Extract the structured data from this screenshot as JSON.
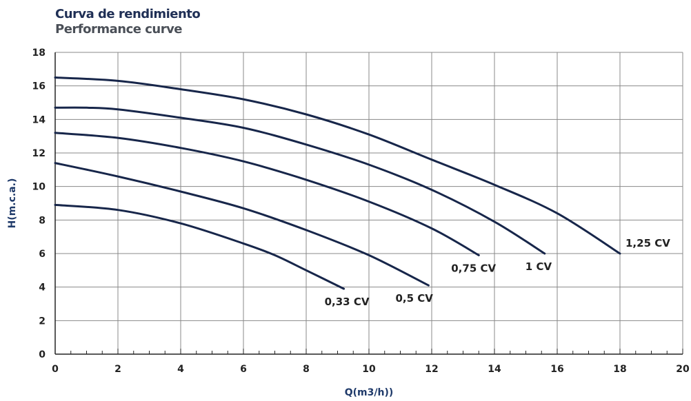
{
  "chart_data": {
    "type": "line",
    "title": "Curva de rendimiento",
    "subtitle": "Performance curve",
    "xlabel": "Q(m3/h))",
    "ylabel": "H(m.c.a.)",
    "xlim": [
      0,
      20
    ],
    "ylim": [
      0,
      18
    ],
    "xticks": [
      0,
      2,
      4,
      6,
      8,
      10,
      12,
      14,
      16,
      18,
      20
    ],
    "yticks": [
      0,
      2,
      4,
      6,
      8,
      10,
      12,
      14,
      16,
      18
    ],
    "grid": true,
    "colors": {
      "line": "#17264a",
      "grid": "#888888",
      "title": "#1f2f55",
      "subtitle": "#4a4f57",
      "ylabel": "#1f3a6a"
    },
    "series": [
      {
        "name": "0,33 CV",
        "x": [
          0,
          2,
          4,
          6,
          7,
          8,
          9.2
        ],
        "y": [
          8.9,
          8.6,
          7.8,
          6.6,
          5.9,
          5.0,
          3.9
        ]
      },
      {
        "name": "0,5 CV",
        "x": [
          0,
          2,
          4,
          6,
          8,
          10,
          11.9
        ],
        "y": [
          11.4,
          10.6,
          9.7,
          8.7,
          7.4,
          5.9,
          4.1
        ]
      },
      {
        "name": "0,75 CV",
        "x": [
          0,
          2,
          4,
          6,
          8,
          10,
          12,
          13.5
        ],
        "y": [
          13.2,
          12.9,
          12.3,
          11.5,
          10.4,
          9.1,
          7.5,
          5.9
        ]
      },
      {
        "name": "1 CV",
        "x": [
          0,
          1,
          2,
          4,
          6,
          8,
          10,
          12,
          14,
          15.6
        ],
        "y": [
          14.7,
          14.7,
          14.6,
          14.1,
          13.5,
          12.5,
          11.3,
          9.8,
          7.9,
          6.0
        ]
      },
      {
        "name": "1,25 CV",
        "x": [
          0,
          2,
          4,
          6,
          8,
          10,
          12,
          14,
          16,
          18
        ],
        "y": [
          16.5,
          16.3,
          15.8,
          15.2,
          14.3,
          13.1,
          11.6,
          10.1,
          8.4,
          6.0
        ]
      }
    ]
  }
}
